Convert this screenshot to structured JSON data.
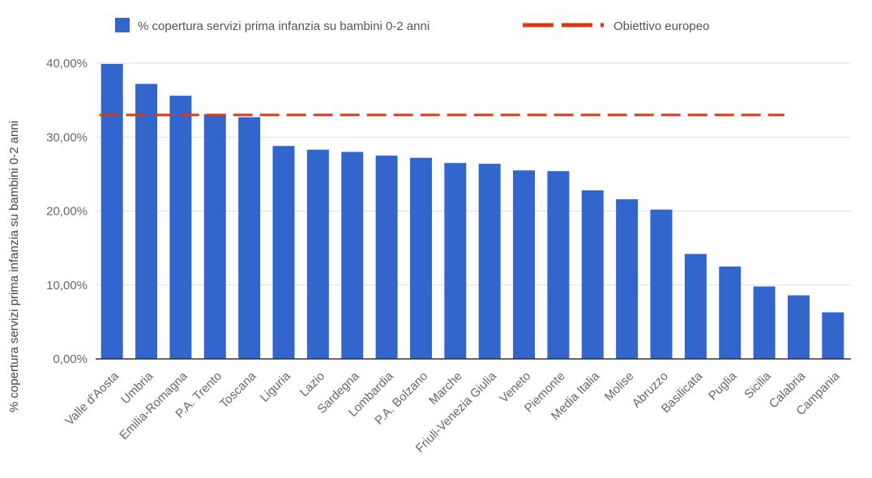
{
  "chart_data": {
    "type": "bar",
    "categories": [
      "Valle d'Aosta",
      "Umbria",
      "Emilia-Romagna",
      "P.A. Trento",
      "Toscana",
      "Liguria",
      "Lazio",
      "Sardegna",
      "Lombardia",
      "P.A. Bolzano",
      "Marche",
      "Friuli-Venezia Giulia",
      "Veneto",
      "Piemonte",
      "Media Italia",
      "Molise",
      "Abruzzo",
      "Basilicata",
      "Puglia",
      "Sicilia",
      "Calabria",
      "Campania"
    ],
    "series": [
      {
        "name": "% copertura servizi prima infanzia su bambini 0-2 anni",
        "color": "#3366cc",
        "values": [
          39.9,
          37.2,
          35.6,
          33.1,
          32.7,
          28.8,
          28.3,
          28.0,
          27.5,
          27.2,
          26.5,
          26.4,
          25.5,
          25.4,
          22.8,
          21.6,
          20.2,
          14.2,
          12.5,
          9.8,
          8.6,
          6.3
        ]
      }
    ],
    "reference_line": {
      "name": "Obiettivo europeo",
      "value": 33,
      "color": "#dc3912",
      "style": "dashed"
    },
    "ylabel": "% copertura servizi prima infanzia su bambini 0-2 anni",
    "xlabel": "",
    "ylim": [
      0,
      40
    ],
    "yticks": [
      0,
      10,
      20,
      30,
      40
    ],
    "ytick_labels": [
      "0,00%",
      "10,00%",
      "20,00%",
      "30,00%",
      "40,00%"
    ],
    "grid": true,
    "legend_position": "top"
  }
}
